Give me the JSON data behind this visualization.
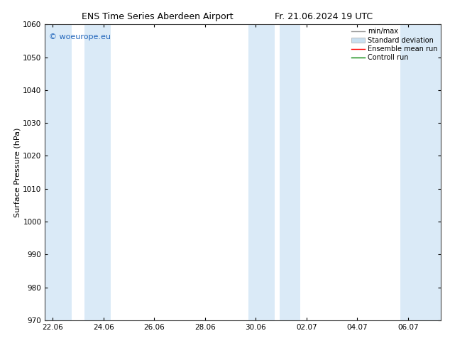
{
  "title_left": "ENS Time Series Aberdeen Airport",
  "title_right": "Fr. 21.06.2024 19 UTC",
  "ylabel": "Surface Pressure (hPa)",
  "ylim": [
    970,
    1060
  ],
  "yticks": [
    970,
    980,
    990,
    1000,
    1010,
    1020,
    1030,
    1040,
    1050,
    1060
  ],
  "xtick_labels": [
    "22.06",
    "24.06",
    "26.06",
    "28.06",
    "30.06",
    "02.07",
    "04.07",
    "06.07"
  ],
  "xtick_positions": [
    0,
    2,
    4,
    6,
    8,
    10,
    12,
    14
  ],
  "xmin": -0.3,
  "xmax": 15.3,
  "shaded_bands": [
    {
      "xmin": -0.3,
      "xmax": 0.75
    },
    {
      "xmin": 1.25,
      "xmax": 2.3
    },
    {
      "xmin": 7.7,
      "xmax": 8.75
    },
    {
      "xmin": 8.95,
      "xmax": 9.75
    },
    {
      "xmin": 13.7,
      "xmax": 15.3
    }
  ],
  "band_color": "#daeaf7",
  "watermark_text": "© woeurope.eu",
  "watermark_color": "#2266bb",
  "background_color": "#ffffff",
  "legend_items": [
    {
      "label": "min/max",
      "color": "#999999",
      "style": "errorbar"
    },
    {
      "label": "Standard deviation",
      "color": "#c8dff0",
      "style": "bar"
    },
    {
      "label": "Ensemble mean run",
      "color": "red",
      "style": "line"
    },
    {
      "label": "Controll run",
      "color": "green",
      "style": "line"
    }
  ],
  "title_fontsize": 9,
  "tick_fontsize": 7.5,
  "ylabel_fontsize": 8,
  "legend_fontsize": 7,
  "watermark_fontsize": 8
}
